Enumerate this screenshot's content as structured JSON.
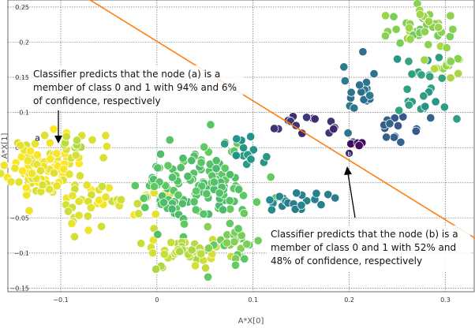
{
  "chart_data": {
    "type": "scatter",
    "xlabel": "A*X[0]",
    "ylabel": "A*X[1]",
    "xlim": [
      -0.155,
      0.33
    ],
    "ylim": [
      -0.155,
      0.26
    ],
    "xticks": [
      -0.1,
      0,
      0.1,
      0.2,
      0.3
    ],
    "xtick_labels": [
      "−0.1",
      "0",
      "0.1",
      "0.2",
      "0.3"
    ],
    "yticks": [
      -0.15,
      -0.1,
      -0.05,
      0,
      0.05,
      0.1,
      0.15,
      0.2,
      0.25
    ],
    "ytick_labels": [
      "−0.15",
      "−0.1",
      "−0.05",
      "0",
      "0.05",
      "0.1",
      "0.15",
      "0.2",
      "0.25"
    ],
    "grid": true,
    "colormap": "viridis",
    "decision_boundary": {
      "color": "#ff7f0e",
      "points": [
        [
          -0.105,
          0.29
        ],
        [
          0.35,
          -0.095
        ]
      ]
    },
    "node_a": {
      "label": "a",
      "x": -0.125,
      "y": 0.064
    },
    "node_b": {
      "label": "b",
      "x": 0.2,
      "y": 0.042
    },
    "clusters": [
      {
        "name": "yellow-left",
        "cx": -0.12,
        "cy": 0.02,
        "sx": 0.02,
        "sy": 0.02,
        "n": 120,
        "c": 0.98
      },
      {
        "name": "yellow-band",
        "cx": -0.045,
        "cy": -0.025,
        "sx": 0.035,
        "sy": 0.02,
        "n": 45,
        "c": 0.95
      },
      {
        "name": "yellow-upper",
        "cx": -0.075,
        "cy": 0.055,
        "sx": 0.015,
        "sy": 0.01,
        "n": 14,
        "c": 0.92
      },
      {
        "name": "green-mid",
        "cx": 0.045,
        "cy": -0.005,
        "sx": 0.03,
        "sy": 0.03,
        "n": 130,
        "c": 0.72
      },
      {
        "name": "yellow-mid-low",
        "cx": 0.03,
        "cy": -0.1,
        "sx": 0.02,
        "sy": 0.013,
        "n": 40,
        "c": 0.9
      },
      {
        "name": "green-low",
        "cx": 0.08,
        "cy": -0.08,
        "sx": 0.015,
        "sy": 0.02,
        "n": 28,
        "c": 0.78
      },
      {
        "name": "teal-ridge",
        "cx": 0.095,
        "cy": 0.05,
        "sx": 0.012,
        "sy": 0.01,
        "n": 14,
        "c": 0.52
      },
      {
        "name": "purple-arc",
        "cx": 0.15,
        "cy": 0.085,
        "sx": 0.03,
        "sy": 0.006,
        "n": 14,
        "c": 0.15
      },
      {
        "name": "teal-low",
        "cx": 0.14,
        "cy": -0.025,
        "sx": 0.015,
        "sy": 0.008,
        "n": 20,
        "c": 0.45
      },
      {
        "name": "blue-arm",
        "cx": 0.21,
        "cy": 0.12,
        "sx": 0.01,
        "sy": 0.03,
        "n": 20,
        "c": 0.38
      },
      {
        "name": "dark-node",
        "cx": 0.21,
        "cy": 0.058,
        "sx": 0.005,
        "sy": 0.004,
        "n": 5,
        "c": 0.05
      },
      {
        "name": "blue-cluster",
        "cx": 0.25,
        "cy": 0.08,
        "sx": 0.012,
        "sy": 0.012,
        "n": 14,
        "c": 0.3
      },
      {
        "name": "teal-right",
        "cx": 0.28,
        "cy": 0.13,
        "sx": 0.015,
        "sy": 0.025,
        "n": 25,
        "c": 0.55
      },
      {
        "name": "green-top",
        "cx": 0.275,
        "cy": 0.22,
        "sx": 0.02,
        "sy": 0.014,
        "n": 40,
        "c": 0.82
      },
      {
        "name": "green-right",
        "cx": 0.305,
        "cy": 0.18,
        "sx": 0.01,
        "sy": 0.02,
        "n": 18,
        "c": 0.85
      }
    ]
  },
  "annotations": {
    "a_lines": [
      "Classifier predicts that the node (a) is a",
      "member of class 0 and 1 with 94% and 6%",
      "of confidence, respectively"
    ],
    "b_lines": [
      "Classifier predicts that the node (b) is a",
      "member of class 0 and 1 with 52% and",
      "48% of confidence, respectively"
    ]
  }
}
